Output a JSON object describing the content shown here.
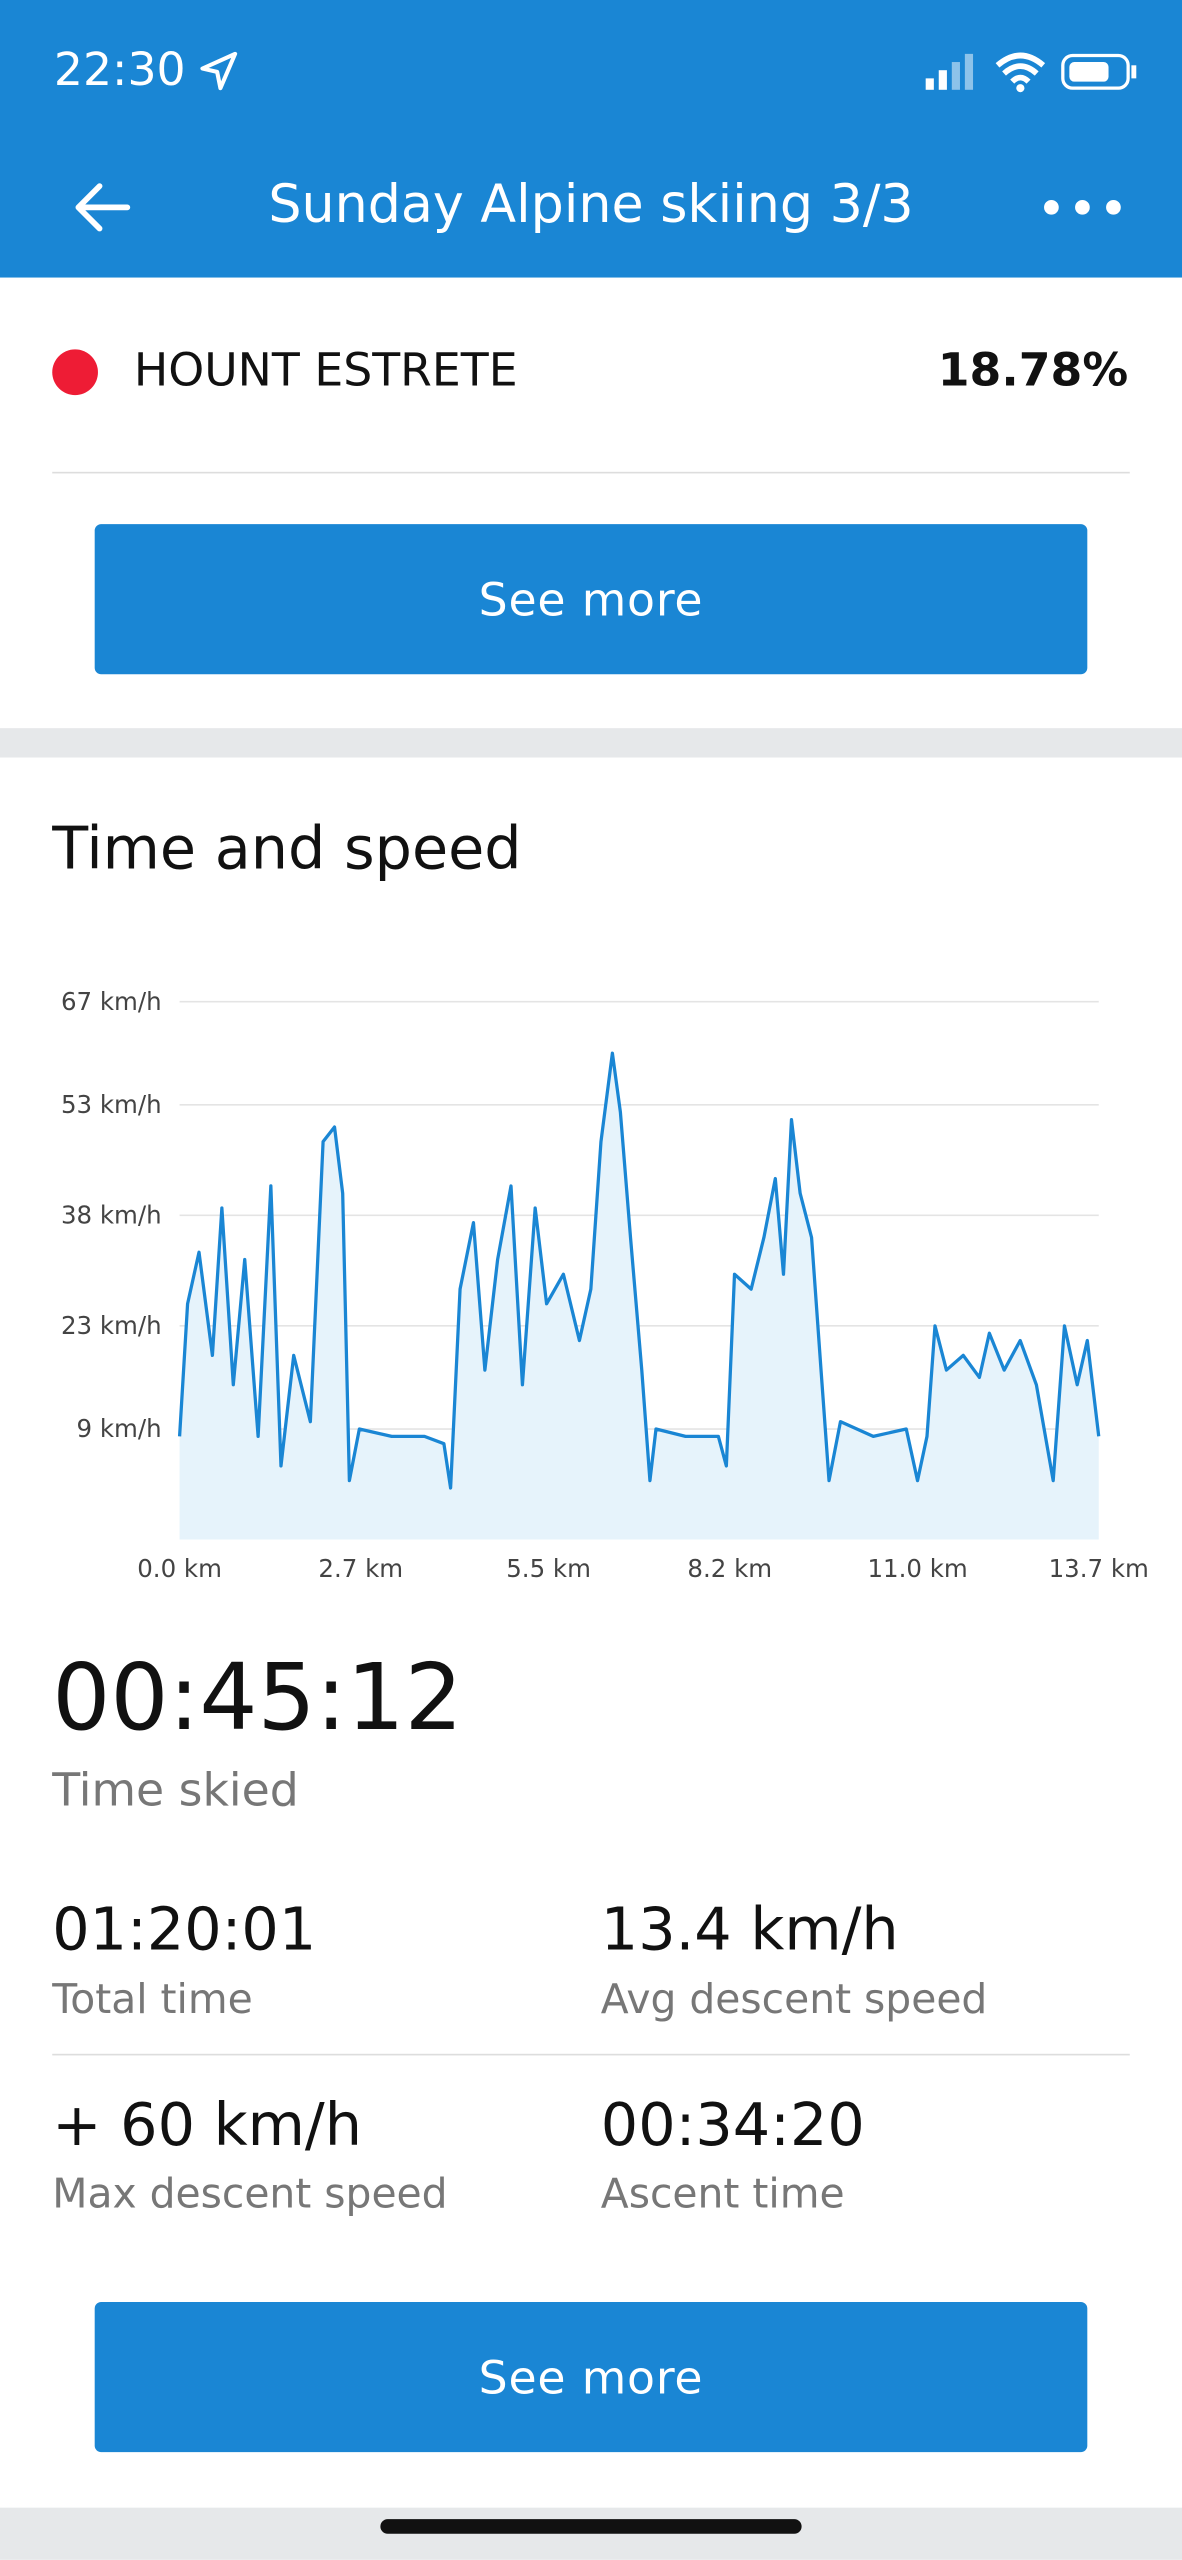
{
  "status_bar": {
    "time": "22:30"
  },
  "header": {
    "title": "Sunday Alpine skiing 3/3"
  },
  "run": {
    "name": "HOUNT ESTRETE",
    "value": "18.78%"
  },
  "buttons": [
    "See more",
    "See more"
  ],
  "section": {
    "title": "Time and speed"
  },
  "chart_data": {
    "type": "area",
    "color": "#1a86d4",
    "fill": "#e6f3fb",
    "grid": true,
    "x": [
      0.0,
      0.12,
      0.29,
      0.49,
      0.63,
      0.8,
      0.97,
      1.17,
      1.36,
      1.51,
      1.7,
      1.95,
      2.14,
      2.31,
      2.43,
      2.53,
      2.68,
      3.16,
      3.65,
      3.94,
      4.04,
      4.18,
      4.38,
      4.55,
      4.74,
      4.94,
      5.11,
      5.3,
      5.47,
      5.72,
      5.96,
      6.13,
      6.28,
      6.45,
      6.57,
      6.72,
      6.89,
      7.01,
      7.1,
      7.54,
      8.03,
      8.15,
      8.27,
      8.52,
      8.71,
      8.88,
      9.0,
      9.12,
      9.25,
      9.42,
      9.56,
      9.68,
      9.85,
      10.34,
      10.83,
      11.0,
      11.14,
      11.26,
      11.43,
      11.68,
      11.92,
      12.07,
      12.29,
      12.53,
      12.77,
      13.02,
      13.19,
      13.38,
      13.53,
      13.7
    ],
    "series": [
      {
        "values": [
          8,
          26,
          33,
          19,
          39,
          15,
          32,
          8,
          42,
          4,
          19,
          10,
          48,
          50,
          41,
          2,
          9,
          8,
          8,
          7,
          1,
          28,
          37,
          17,
          32,
          42,
          15,
          39,
          26,
          30,
          21,
          28,
          48,
          60,
          52,
          35,
          17,
          2,
          9,
          8,
          8,
          4,
          30,
          28,
          35,
          43,
          30,
          51,
          41,
          35,
          17,
          2,
          10,
          8,
          9,
          2,
          8,
          23,
          17,
          19,
          16,
          22,
          17,
          21,
          15,
          2,
          23,
          15,
          21,
          8
        ]
      }
    ],
    "xlim": [
      0,
      13.7
    ],
    "xticks": [
      {
        "value": 0,
        "label": "0.0 km"
      },
      {
        "value": 2.7,
        "label": "2.7 km"
      },
      {
        "value": 5.5,
        "label": "5.5 km"
      },
      {
        "value": 8.2,
        "label": "8.2 km"
      },
      {
        "value": 11.0,
        "label": "11.0 km"
      },
      {
        "value": 13.7,
        "label": "13.7 km"
      }
    ],
    "ylim": [
      -6,
      70
    ],
    "yticks": [
      {
        "value": 9,
        "label": "9 km/h"
      },
      {
        "value": 23,
        "label": "23 km/h"
      },
      {
        "value": 38,
        "label": "38 km/h"
      },
      {
        "value": 53,
        "label": "53 km/h"
      },
      {
        "value": 67,
        "label": "67 km/h"
      }
    ]
  },
  "stats": {
    "main": {
      "value": "00:45:12",
      "label": "Time skied"
    },
    "items": [
      {
        "value": "01:20:01",
        "label": "Total time"
      },
      {
        "value": "13.4 km/h",
        "label": "Avg descent speed"
      },
      {
        "value": "+ 60 km/h",
        "label": "Max descent speed"
      },
      {
        "value": "00:34:20",
        "label": "Ascent time"
      }
    ]
  }
}
